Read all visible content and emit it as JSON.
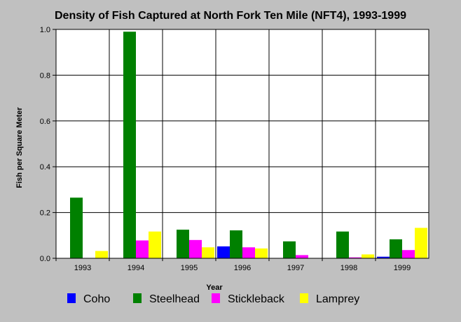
{
  "chart_data": {
    "type": "bar",
    "title": "Density of Fish Captured at North Fork Ten Mile (NFT4), 1993-1999",
    "xlabel": "Year",
    "ylabel": "Fish per Square Meter",
    "ylim": [
      0,
      1.0
    ],
    "yticks": [
      "0.0",
      "0.2",
      "0.4",
      "0.6",
      "0.8",
      "1.0"
    ],
    "categories": [
      "1993",
      "1994",
      "1995",
      "1996",
      "1997",
      "1998",
      "1999"
    ],
    "grid": true,
    "legend_position": "bottom",
    "series": [
      {
        "name": "Coho",
        "color": "#0000ff",
        "values": [
          0,
          0,
          0,
          0.052,
          0,
          0,
          0.007
        ]
      },
      {
        "name": "Steelhead",
        "color": "#008000",
        "values": [
          0.265,
          0.99,
          0.125,
          0.122,
          0.074,
          0.117,
          0.083
        ]
      },
      {
        "name": "Stickleback",
        "color": "#ff00ff",
        "values": [
          0,
          0.078,
          0.08,
          0.048,
          0.014,
          0.004,
          0.036
        ]
      },
      {
        "name": "Lamprey",
        "color": "#ffff00",
        "values": [
          0.032,
          0.117,
          0.048,
          0.043,
          0,
          0.017,
          0.133
        ]
      }
    ]
  }
}
